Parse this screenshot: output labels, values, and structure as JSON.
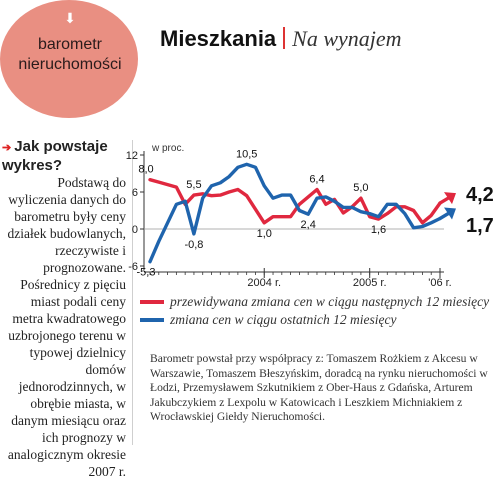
{
  "header": {
    "badge_text": "barometr nieruchomości",
    "badge_icon": "down-arrow-icon",
    "title": "Mieszkania",
    "subtitle": "Na wynajem"
  },
  "sidebar": {
    "heading": "Jak powstaje wykres?",
    "body": "Podstawą do wyliczenia danych do barometru były ceny działek budowlanych, rzeczywiste i prognozowane. Pośrednicy z pięciu miast podali ceny metra kwadratowego uzbrojonego terenu w typowej dzielnicy domów jednorodzinnych, w obrębie miasta, w danym miesiącu oraz ich prognozy w analogicznym okresie 2007 r."
  },
  "credits": "Barometr powstał przy współpracy z: Tomaszem Rożkiem z Akcesu w Warszawie, Tomaszem Błeszyńskim, doradcą na rynku nieruchomości w Łodzi, Przemysławem Szkutnikiem z Ober-Haus z Gdańska, Arturem Jakubczykiem z Lexpolu w Katowicach i Leszkiem Michniakiem z Wrocławskiej Giełdy Nieruchomości.",
  "colors": {
    "accent": "#e98f82",
    "red_series": "#e0283f",
    "blue_series": "#1f64ad"
  },
  "chart_data": {
    "type": "line",
    "ylabel": "w proc.",
    "ylim": [
      -6,
      12
    ],
    "yticks": [
      -6,
      0,
      6,
      12
    ],
    "x_year_labels": [
      {
        "label": "2004 r.",
        "index": 13
      },
      {
        "label": "2005 r.",
        "index": 25
      },
      {
        "label": "'06 r.",
        "index": 33
      }
    ],
    "grid": false,
    "series": [
      {
        "name": "przewidywana zmiana cen w ciągu następnych 12 miesięcy",
        "color": "#e0283f",
        "values": [
          8.0,
          7.6,
          7.2,
          6.8,
          4.0,
          5.5,
          5.7,
          5.4,
          5.5,
          6.0,
          6.4,
          5.4,
          3.2,
          1.0,
          2.0,
          2.0,
          2.0,
          4.0,
          5.2,
          6.4,
          4.0,
          4.8,
          2.6,
          3.6,
          5.0,
          2.0,
          1.6,
          2.5,
          3.6,
          3.6,
          3.0,
          1.0,
          2.2,
          4.2
        ],
        "point_labels": [
          {
            "index": 0,
            "text": "8,0"
          },
          {
            "index": 5,
            "text": "5,5"
          },
          {
            "index": 13,
            "text": "1,0"
          },
          {
            "index": 19,
            "text": "6,4"
          },
          {
            "index": 24,
            "text": "5,0"
          },
          {
            "index": 26,
            "text": "1,6"
          }
        ],
        "end_label": "4,2"
      },
      {
        "name": "zmiana cen w ciągu ostatnich 12 miesięcy",
        "color": "#1f64ad",
        "values": [
          -5.3,
          -2.0,
          1.0,
          4.0,
          4.5,
          -0.8,
          5.0,
          7.0,
          7.5,
          8.5,
          10.0,
          10.5,
          10.0,
          7.0,
          5.0,
          5.5,
          5.5,
          3.0,
          2.4,
          5.0,
          5.2,
          4.5,
          3.5,
          3.5,
          2.8,
          2.5,
          2.0,
          4.0,
          4.0,
          2.5,
          0.2,
          0.4,
          1.0,
          1.7
        ],
        "point_labels": [
          {
            "index": 0,
            "text": "-5,3"
          },
          {
            "index": 5,
            "text": "-0,8"
          },
          {
            "index": 11,
            "text": "10,5"
          },
          {
            "index": 18,
            "text": "2,4"
          }
        ],
        "end_label": "1,7"
      }
    ]
  }
}
